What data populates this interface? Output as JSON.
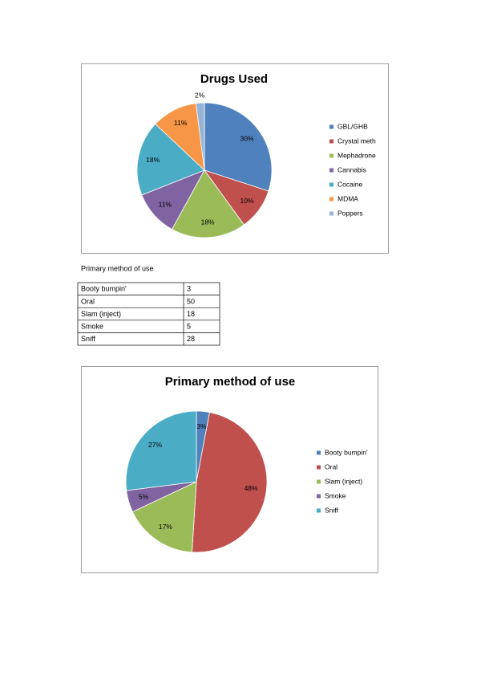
{
  "chart_data": [
    {
      "type": "pie",
      "title": "Drugs Used",
      "categories": [
        "GBL/GHB",
        "Crystal meth",
        "Mephadrone",
        "Cannabis",
        "Cocaine",
        "MDMA",
        "Poppers"
      ],
      "values": [
        30,
        10,
        18,
        11,
        18,
        11,
        2
      ],
      "value_labels": [
        "30%",
        "10%",
        "18%",
        "11%",
        "18%",
        "11%",
        "2%"
      ],
      "colors": [
        "#4f81bd",
        "#c0504d",
        "#9bbb59",
        "#8064a2",
        "#4bacc6",
        "#f79646",
        "#95b3d7"
      ],
      "legend": "right"
    },
    {
      "type": "pie",
      "title": "Primary method of use",
      "categories": [
        "Booty bumpin'",
        "Oral",
        "Slam (inject)",
        "Smoke",
        "Sniff"
      ],
      "values": [
        3,
        48,
        17,
        5,
        27
      ],
      "value_labels": [
        "3%",
        "48%",
        "17%",
        "5%",
        "27%"
      ],
      "colors": [
        "#4f81bd",
        "#c0504d",
        "#9bbb59",
        "#8064a2",
        "#4bacc6"
      ],
      "legend": "right"
    }
  ],
  "caption": "Primary method of use",
  "table": {
    "rows": [
      [
        "Booty bumpin'",
        3
      ],
      [
        "Oral",
        50
      ],
      [
        "Slam (inject)",
        18
      ],
      [
        "Smoke",
        5
      ],
      [
        "Sniff",
        28
      ]
    ]
  }
}
